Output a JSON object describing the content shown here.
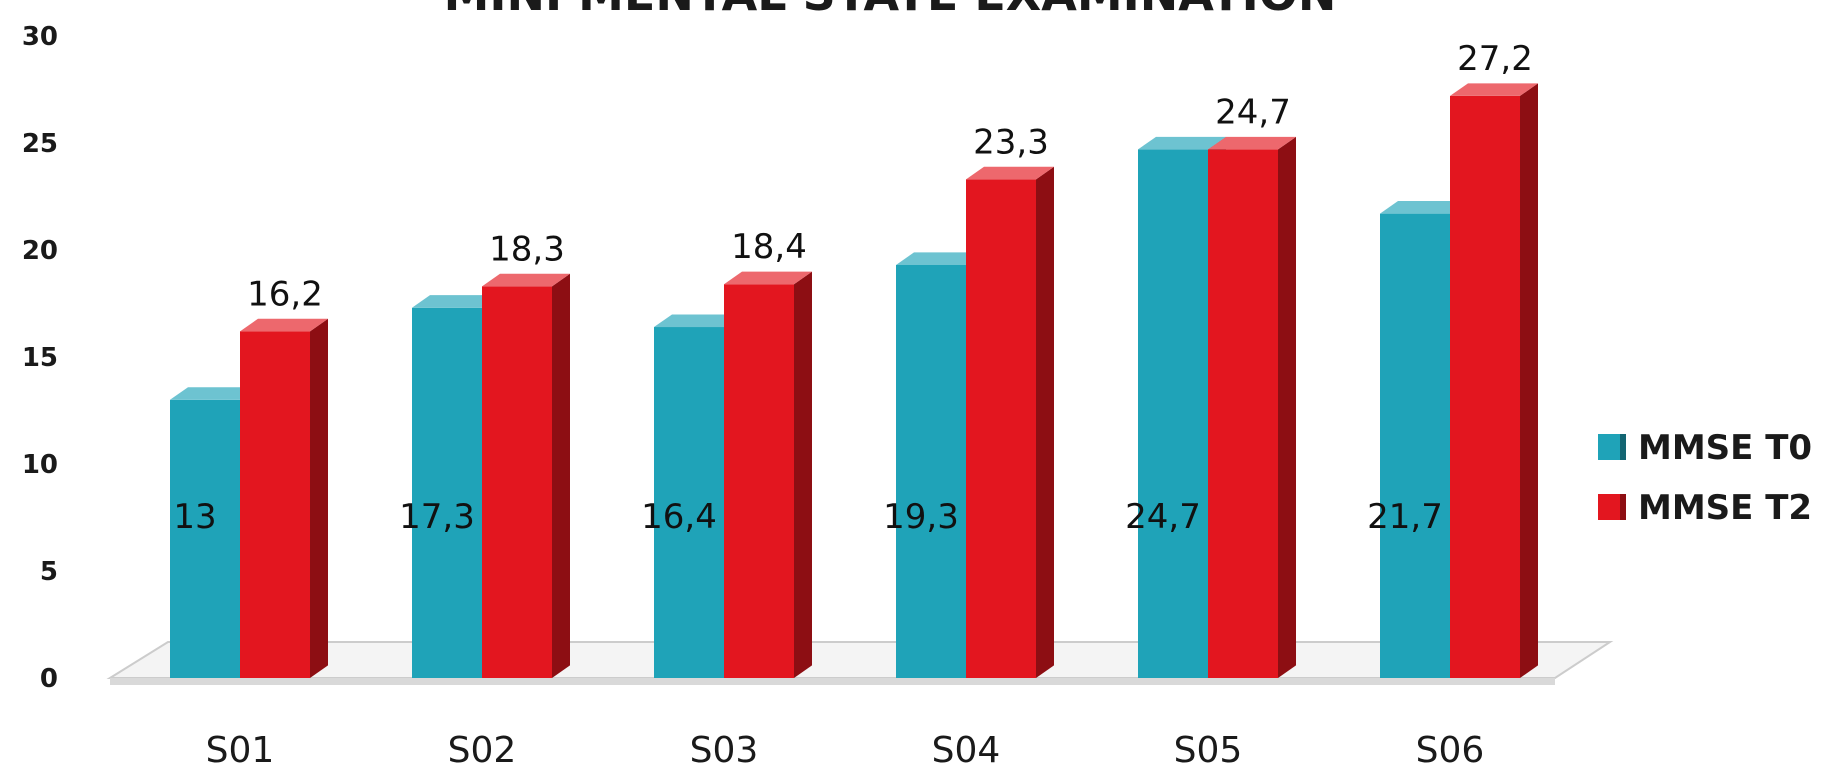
{
  "chart_data": {
    "type": "bar",
    "title": "MINI MENTAL STATE EXAMINATION",
    "categories": [
      "S01",
      "S02",
      "S03",
      "S04",
      "S05",
      "S06"
    ],
    "series": [
      {
        "name": "MMSE T0",
        "color": "#1fa3b8",
        "values": [
          13,
          17.3,
          16.4,
          19.3,
          24.7,
          21.7
        ],
        "labels": [
          "13",
          "17,3",
          "16,4",
          "19,3",
          "24,7",
          "21,7"
        ]
      },
      {
        "name": "MMSE T2",
        "color": "#e3161f",
        "values": [
          16.2,
          18.3,
          18.4,
          23.3,
          24.7,
          27.2
        ],
        "labels": [
          "16,2",
          "18,3",
          "18,4",
          "23,3",
          "24,7",
          "27,2"
        ]
      }
    ],
    "ylim": [
      0,
      30
    ],
    "yticks": [
      "0",
      "5",
      "10",
      "15",
      "20",
      "25",
      "30"
    ],
    "xlabel": "",
    "ylabel": "",
    "legend": "right",
    "grid": false
  }
}
